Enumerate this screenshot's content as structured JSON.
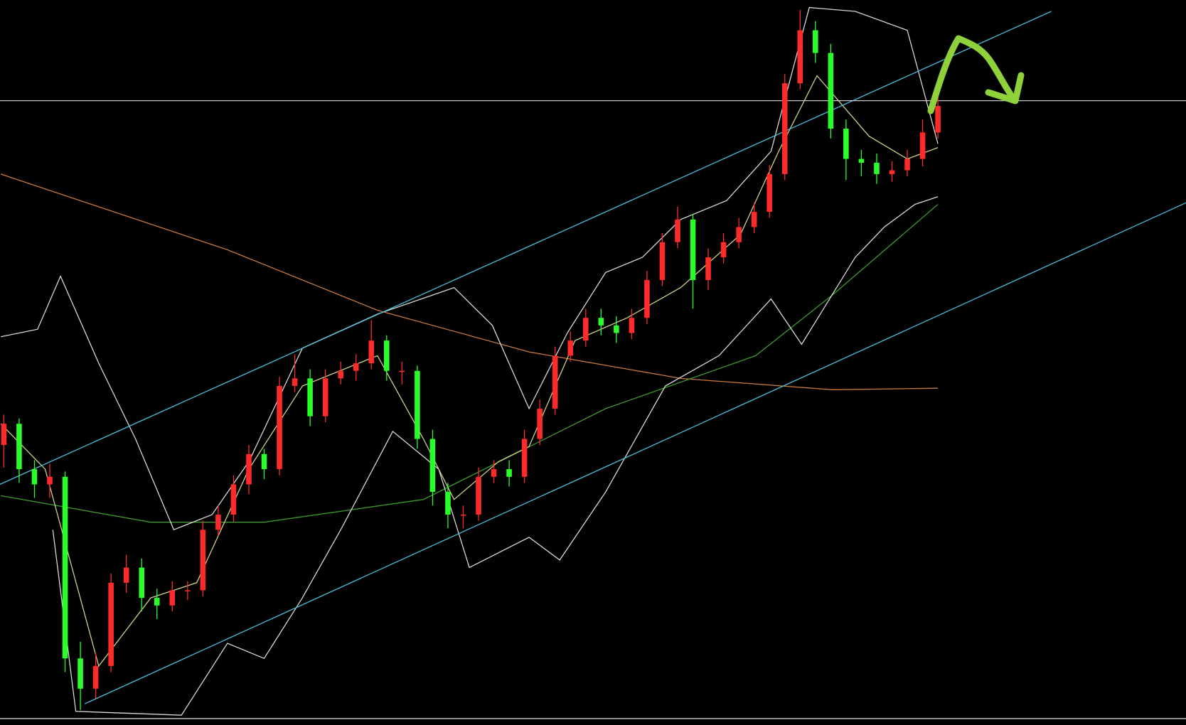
{
  "chart_data": {
    "type": "candlestick",
    "up_color": "#ff2a2a",
    "down_color": "#2aff2a",
    "xlim": [
      -0.25,
      77.2
    ],
    "ylim": [
      0,
      958
    ],
    "x": [
      0,
      1,
      2,
      3,
      4,
      5,
      6,
      7,
      8,
      9,
      10,
      11,
      12,
      13,
      14,
      15,
      16,
      17,
      18,
      19,
      20,
      21,
      22,
      23,
      24,
      25,
      26,
      27,
      28,
      29,
      30,
      31,
      32,
      33,
      34,
      35,
      36,
      37,
      38,
      39,
      40,
      41,
      42,
      43,
      44,
      45,
      46,
      47,
      48,
      49,
      50,
      51,
      52,
      53,
      54,
      55,
      56,
      57,
      58,
      59,
      60,
      61
    ],
    "open": [
      370,
      398,
      338,
      318,
      328,
      88,
      48,
      78,
      188,
      208,
      168,
      158,
      178,
      178,
      258,
      278,
      318,
      358,
      338,
      448,
      458,
      408,
      458,
      468,
      478,
      508,
      468,
      468,
      378,
      308,
      278,
      278,
      328,
      338,
      328,
      378,
      418,
      488,
      508,
      538,
      528,
      518,
      538,
      588,
      638,
      668,
      588,
      618,
      638,
      658,
      678,
      728,
      848,
      918,
      888,
      788,
      748,
      743,
      728,
      733,
      748,
      783
    ],
    "high": [
      410,
      405,
      350,
      345,
      335,
      110,
      95,
      200,
      225,
      220,
      180,
      190,
      190,
      270,
      290,
      330,
      370,
      365,
      460,
      490,
      470,
      470,
      480,
      490,
      535,
      515,
      480,
      475,
      390,
      320,
      290,
      340,
      350,
      350,
      390,
      430,
      500,
      520,
      550,
      550,
      540,
      550,
      600,
      650,
      685,
      675,
      630,
      650,
      670,
      690,
      740,
      860,
      945,
      930,
      900,
      800,
      760,
      755,
      745,
      760,
      800,
      830
    ],
    "low": [
      340,
      320,
      300,
      300,
      70,
      20,
      35,
      70,
      175,
      150,
      140,
      150,
      165,
      170,
      250,
      268,
      305,
      325,
      330,
      440,
      395,
      400,
      450,
      455,
      470,
      455,
      450,
      365,
      290,
      260,
      260,
      270,
      320,
      315,
      320,
      370,
      410,
      480,
      500,
      515,
      505,
      510,
      530,
      580,
      630,
      550,
      575,
      610,
      630,
      650,
      670,
      720,
      840,
      875,
      775,
      720,
      725,
      715,
      718,
      725,
      738,
      775
    ],
    "close": [
      398,
      338,
      318,
      328,
      88,
      48,
      78,
      188,
      208,
      168,
      158,
      178,
      178,
      258,
      278,
      318,
      358,
      338,
      448,
      458,
      408,
      458,
      468,
      478,
      508,
      468,
      468,
      378,
      308,
      278,
      278,
      328,
      338,
      328,
      378,
      418,
      488,
      508,
      538,
      528,
      518,
      538,
      588,
      638,
      668,
      588,
      618,
      638,
      658,
      678,
      728,
      848,
      918,
      888,
      788,
      748,
      743,
      728,
      733,
      748,
      783,
      818
    ],
    "lines": [
      {
        "color": "#c87a3c",
        "x": [
          -0.2,
          14.6,
          24.4,
          34.3,
          44.2,
          54.1,
          61.0
        ],
        "values": [
          728,
          628,
          548,
          493,
          458,
          443,
          445
        ]
      },
      {
        "color": "#3c9a2c",
        "x": [
          -0.2,
          9.6,
          17.0,
          27.4,
          39.3,
          49.1,
          54.1,
          61.0
        ],
        "values": [
          303,
          268,
          268,
          298,
          418,
          488,
          568,
          688
        ]
      },
      {
        "color": "#d8d8d8",
        "x": [
          -0.2,
          2.2,
          3.7,
          6.2,
          8.6,
          11.1,
          13.6,
          16.0,
          19.5,
          24.4,
          29.4,
          31.9,
          34.3,
          36.8,
          39.3,
          41.7,
          44.2,
          47.2,
          50.1,
          52.6,
          55.6,
          59.0,
          61.0
        ],
        "values": [
          513,
          523,
          593,
          478,
          378,
          258,
          278,
          348,
          498,
          543,
          578,
          528,
          418,
          518,
          598,
          618,
          668,
          693,
          758,
          948,
          943,
          918,
          768
        ]
      },
      {
        "color": "#d8d8d8",
        "x": [
          3.2,
          4.7,
          11.6,
          14.6,
          17.0,
          19.5,
          22.0,
          25.4,
          28.4,
          30.4,
          34.3,
          36.3,
          39.3,
          43.2,
          46.7,
          50.1,
          52.1,
          55.6,
          57.5,
          59.5,
          61.0
        ],
        "values": [
          258,
          18,
          13,
          108,
          88,
          168,
          258,
          388,
          338,
          208,
          248,
          218,
          308,
          448,
          488,
          563,
          503,
          618,
          658,
          688,
          698
        ]
      },
      {
        "color": "#d0d08a",
        "x": [
          -0.2,
          2.7,
          6.2,
          9.6,
          12.6,
          16.0,
          19.5,
          24.4,
          27.4,
          29.4,
          32.3,
          34.3,
          37.3,
          40.7,
          44.2,
          48.1,
          50.6,
          53.1,
          56.5,
          59.0,
          61.0
        ],
        "values": [
          398,
          338,
          78,
          168,
          188,
          338,
          448,
          488,
          378,
          298,
          348,
          368,
          508,
          538,
          578,
          648,
          758,
          858,
          778,
          748,
          763
        ]
      },
      {
        "color": "#46bcd8",
        "x": [
          -0.25,
          68.4
        ],
        "values": [
          318,
          943
        ]
      },
      {
        "color": "#46bcd8",
        "x": [
          5.28,
          77.2
        ],
        "values": [
          28,
          690
        ]
      },
      {
        "color": "#c8c8c8",
        "x": [
          -0.25,
          77.2
        ],
        "values": [
          825,
          825
        ]
      }
    ]
  }
}
